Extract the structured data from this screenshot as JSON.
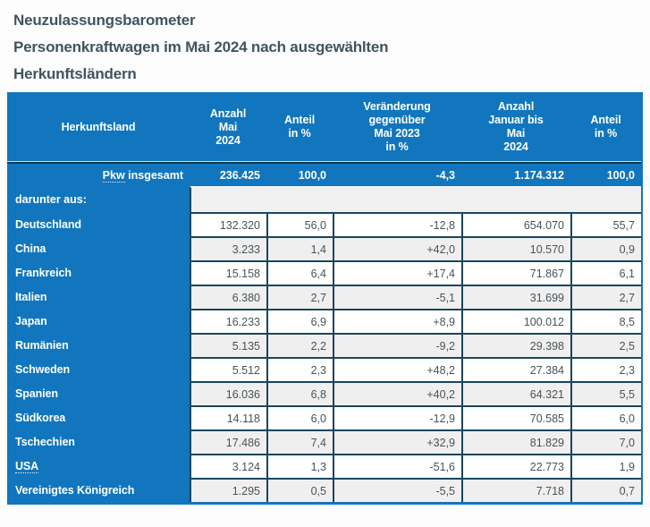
{
  "title": {
    "line1": "Neuzulassungsbarometer",
    "line2": "Personenkraftwagen im Mai 2024 nach ausgewählten",
    "line3": "Herkunftsländern"
  },
  "colors": {
    "primary_blue": "#1176bd",
    "dark_cell_border": "#1b455c",
    "alt_row_gray": "#efefef",
    "body_text": "#4a5258",
    "title_text": "#3f545e"
  },
  "table": {
    "headers": [
      "Herkunftsland",
      "Anzahl\nMai\n2024",
      "Anteil\nin %",
      "Veränderung\ngegenüber\nMai 2023\nin %",
      "Anzahl\nJanuar bis\nMai\n2024",
      "Anteil\nin %"
    ],
    "total_row": {
      "label_abbr": "Pkw",
      "label_rest": " insgesamt",
      "values": [
        "236.425",
        "100,0",
        "-4,3",
        "1.174.312",
        "100,0"
      ]
    },
    "section_label": "darunter aus:",
    "rows": [
      {
        "country": "Deutschland",
        "values": [
          "132.320",
          "56,0",
          "-12,8",
          "654.070",
          "55,7"
        ]
      },
      {
        "country": "China",
        "values": [
          "3.233",
          "1,4",
          "+42,0",
          "10.570",
          "0,9"
        ]
      },
      {
        "country": "Frankreich",
        "values": [
          "15.158",
          "6,4",
          "+17,4",
          "71.867",
          "6,1"
        ]
      },
      {
        "country": "Italien",
        "values": [
          "6.380",
          "2,7",
          "-5,1",
          "31.699",
          "2,7"
        ]
      },
      {
        "country": "Japan",
        "values": [
          "16.233",
          "6,9",
          "+8,9",
          "100.012",
          "8,5"
        ]
      },
      {
        "country": "Rumänien",
        "values": [
          "5.135",
          "2,2",
          "-9,2",
          "29.398",
          "2,5"
        ]
      },
      {
        "country": "Schweden",
        "values": [
          "5.512",
          "2,3",
          "+48,2",
          "27.384",
          "2,3"
        ]
      },
      {
        "country": "Spanien",
        "values": [
          "16.036",
          "6,8",
          "+40,2",
          "64.321",
          "5,5"
        ]
      },
      {
        "country": "Südkorea",
        "values": [
          "14.118",
          "6,0",
          "-12,9",
          "70.585",
          "6,0"
        ]
      },
      {
        "country": "Tschechien",
        "values": [
          "17.486",
          "7,4",
          "+32,9",
          "81.829",
          "7,0"
        ]
      },
      {
        "country": "USA",
        "values": [
          "3.124",
          "1,3",
          "-51,6",
          "22.773",
          "1,9"
        ]
      },
      {
        "country": "Vereinigtes Königreich",
        "values": [
          "1.295",
          "0,5",
          "-5,5",
          "7.718",
          "0,7"
        ]
      }
    ]
  },
  "chart_data": {
    "type": "table",
    "title": "Neuzulassungsbarometer Personenkraftwagen im Mai 2024 nach ausgewählten Herkunftsländern",
    "columns": [
      "Herkunftsland",
      "Anzahl Mai 2024",
      "Anteil in %",
      "Veränderung gegenüber Mai 2023 in %",
      "Anzahl Januar bis Mai 2024",
      "Anteil in %"
    ],
    "rows": [
      [
        "Pkw insgesamt",
        236425,
        100.0,
        -4.3,
        1174312,
        100.0
      ],
      [
        "Deutschland",
        132320,
        56.0,
        -12.8,
        654070,
        55.7
      ],
      [
        "China",
        3233,
        1.4,
        42.0,
        10570,
        0.9
      ],
      [
        "Frankreich",
        15158,
        6.4,
        17.4,
        71867,
        6.1
      ],
      [
        "Italien",
        6380,
        2.7,
        -5.1,
        31699,
        2.7
      ],
      [
        "Japan",
        16233,
        6.9,
        8.9,
        100012,
        8.5
      ],
      [
        "Rumänien",
        5135,
        2.2,
        -9.2,
        29398,
        2.5
      ],
      [
        "Schweden",
        5512,
        2.3,
        48.2,
        27384,
        2.3
      ],
      [
        "Spanien",
        16036,
        6.8,
        40.2,
        64321,
        5.5
      ],
      [
        "Südkorea",
        14118,
        6.0,
        -12.9,
        70585,
        6.0
      ],
      [
        "Tschechien",
        17486,
        7.4,
        32.9,
        81829,
        7.0
      ],
      [
        "USA",
        3124,
        1.3,
        -51.6,
        22773,
        1.9
      ],
      [
        "Vereinigtes Königreich",
        1295,
        0.5,
        -5.5,
        7718,
        0.7
      ]
    ]
  }
}
